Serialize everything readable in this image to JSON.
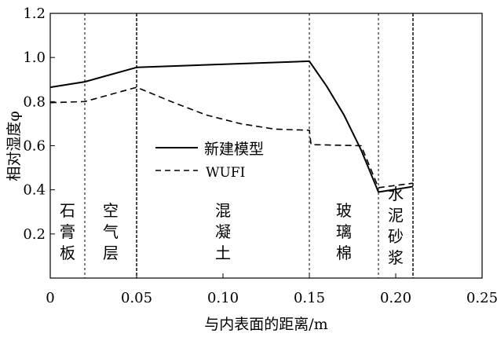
{
  "chart_data": {
    "type": "line",
    "xlabel": "与内表面的距离/m",
    "ylabel": "相对湿度φ",
    "xlim": [
      0,
      0.25
    ],
    "ylim": [
      0,
      1.2
    ],
    "xticks": [
      0,
      0.05,
      0.1,
      0.15,
      0.2,
      0.25
    ],
    "xtick_labels": [
      "0",
      "0.05",
      "0.10",
      "0.15",
      "0.20",
      "0.25"
    ],
    "yticks": [
      0.2,
      0.4,
      0.6,
      0.8,
      1.0,
      1.2
    ],
    "ytick_labels": [
      "0.2",
      "0.4",
      "0.6",
      "0.8",
      "1.0",
      "1.2"
    ],
    "grid": false,
    "legend_position": "center",
    "series": [
      {
        "name": "新建模型",
        "style": "solid",
        "x": [
          0,
          0.02,
          0.05,
          0.15,
          0.16,
          0.17,
          0.18,
          0.19,
          0.21
        ],
        "y": [
          0.865,
          0.89,
          0.955,
          0.983,
          0.87,
          0.74,
          0.58,
          0.39,
          0.415
        ]
      },
      {
        "name": "WUFI",
        "style": "dashed",
        "x": [
          0,
          0.02,
          0.05,
          0.07,
          0.09,
          0.11,
          0.13,
          0.15,
          0.151,
          0.18,
          0.19,
          0.21
        ],
        "y": [
          0.795,
          0.8,
          0.865,
          0.8,
          0.74,
          0.7,
          0.675,
          0.67,
          0.605,
          0.6,
          0.41,
          0.43
        ]
      }
    ],
    "layer_boundaries": [
      0.02,
      0.05,
      0.15,
      0.19,
      0.21
    ],
    "layer_labels": [
      {
        "text": "石膏板",
        "x": 0.01
      },
      {
        "text": "空气层",
        "x": 0.035
      },
      {
        "text": "混凝土",
        "x": 0.1
      },
      {
        "text": "玻璃棉",
        "x": 0.17
      },
      {
        "text": "水泥砂浆",
        "x": 0.2
      }
    ]
  }
}
